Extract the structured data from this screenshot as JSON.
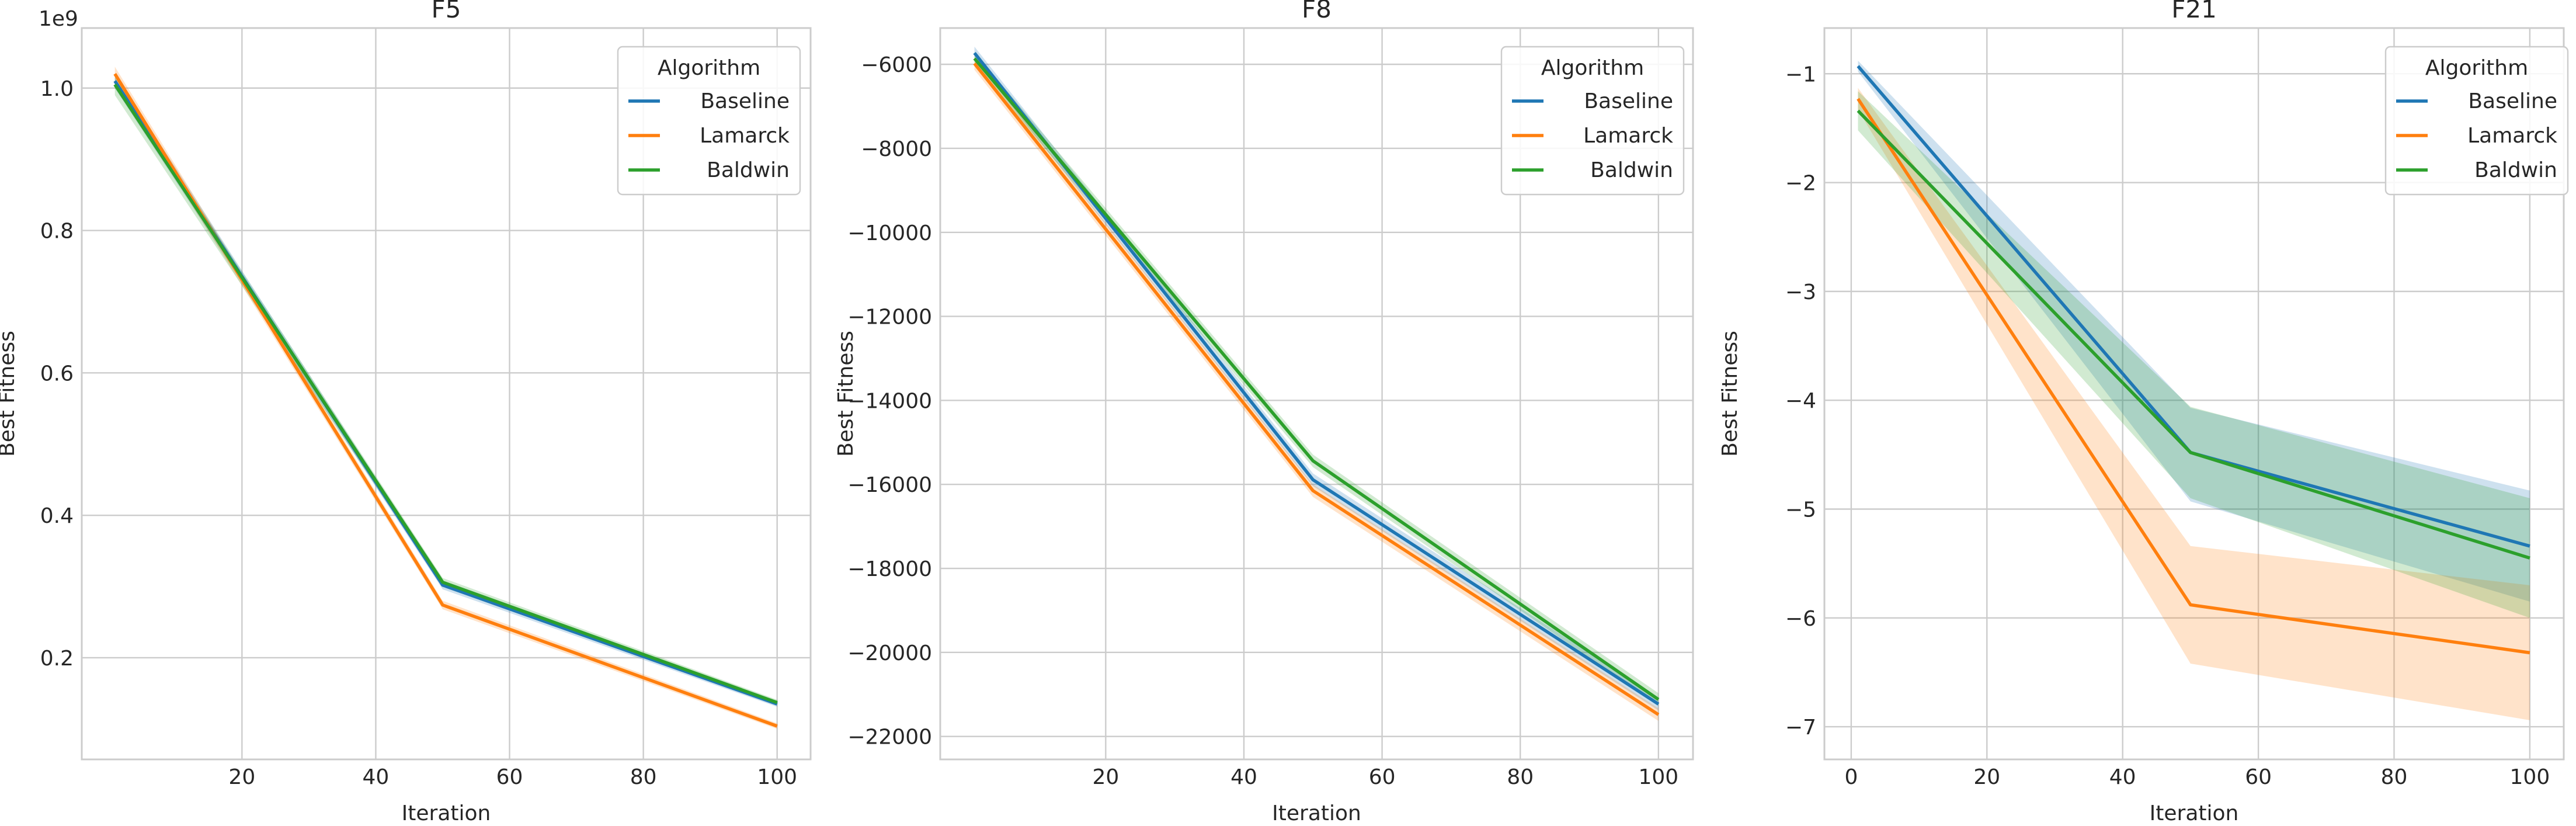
{
  "chart_data": [
    {
      "type": "line",
      "title": "F5",
      "xlabel": "Iteration",
      "ylabel": "Best Fitness",
      "y_offset_label": "1e9",
      "xlim": [
        -3.95,
        105
      ],
      "ylim": [
        0.0572,
        1.0843
      ],
      "x_ticks": [
        20,
        40,
        60,
        80,
        100
      ],
      "y_ticks": [
        0.2,
        0.4,
        0.6,
        0.8,
        1.0
      ],
      "y_tick_labels": [
        "0.2",
        "0.4",
        "0.6",
        "0.8",
        "1.0"
      ],
      "grid": true,
      "legend": {
        "title": "Algorithm",
        "placement": "top-right",
        "labels": [
          "Baseline",
          "Lamarck",
          "Baldwin"
        ]
      },
      "series": [
        {
          "name": "Baseline",
          "color": "#1f77b4",
          "x": [
            1,
            50,
            100
          ],
          "y": [
            1.01,
            0.302,
            0.135
          ],
          "lower": [
            1.0,
            0.296,
            0.131
          ],
          "upper": [
            1.02,
            0.308,
            0.139
          ]
        },
        {
          "name": "Lamarck",
          "color": "#ff7f0e",
          "x": [
            1,
            50,
            100
          ],
          "y": [
            1.02,
            0.274,
            0.104
          ],
          "lower": [
            1.01,
            0.268,
            0.1
          ],
          "upper": [
            1.03,
            0.28,
            0.108
          ]
        },
        {
          "name": "Baldwin",
          "color": "#2ca02c",
          "x": [
            1,
            50,
            100
          ],
          "y": [
            1.005,
            0.306,
            0.137
          ],
          "lower": [
            0.99,
            0.3,
            0.133
          ],
          "upper": [
            1.015,
            0.312,
            0.141
          ]
        }
      ]
    },
    {
      "type": "line",
      "title": "F8",
      "xlabel": "Iteration",
      "ylabel": "Best Fitness",
      "xlim": [
        -3.95,
        105
      ],
      "ylim": [
        -22547,
        -5136
      ],
      "x_ticks": [
        20,
        40,
        60,
        80,
        100
      ],
      "y_ticks": [
        -22000,
        -20000,
        -18000,
        -16000,
        -14000,
        -12000,
        -10000,
        -8000,
        -6000
      ],
      "y_tick_labels": [
        "−22000",
        "−20000",
        "−18000",
        "−16000",
        "−14000",
        "−12000",
        "−10000",
        "−8000",
        "−6000"
      ],
      "grid": true,
      "legend": {
        "title": "Algorithm",
        "placement": "top-right",
        "labels": [
          "Baseline",
          "Lamarck",
          "Baldwin"
        ]
      },
      "series": [
        {
          "name": "Baseline",
          "color": "#1f77b4",
          "x": [
            1,
            50,
            100
          ],
          "y": [
            -5730,
            -15890,
            -21230
          ],
          "lower": [
            -5880,
            -16040,
            -21380
          ],
          "upper": [
            -5580,
            -15740,
            -21080
          ]
        },
        {
          "name": "Lamarck",
          "color": "#ff7f0e",
          "x": [
            1,
            50,
            100
          ],
          "y": [
            -5980,
            -16150,
            -21480
          ],
          "lower": [
            -6130,
            -16300,
            -21630
          ],
          "upper": [
            -5830,
            -16000,
            -21330
          ]
        },
        {
          "name": "Baldwin",
          "color": "#2ca02c",
          "x": [
            1,
            50,
            100
          ],
          "y": [
            -5860,
            -15440,
            -21120
          ],
          "lower": [
            -6010,
            -15590,
            -21270
          ],
          "upper": [
            -5710,
            -15290,
            -20970
          ]
        }
      ]
    },
    {
      "type": "line",
      "title": "F21",
      "xlabel": "Iteration",
      "ylabel": "Best Fitness",
      "xlim": [
        -3.95,
        105
      ],
      "ylim": [
        -7.3,
        -0.58
      ],
      "x_ticks": [
        0,
        20,
        40,
        60,
        80,
        100
      ],
      "y_ticks": [
        -7,
        -6,
        -5,
        -4,
        -3,
        -2,
        -1
      ],
      "y_tick_labels": [
        "−7",
        "−6",
        "−5",
        "−4",
        "−3",
        "−2",
        "−1"
      ],
      "grid": true,
      "legend": {
        "title": "Algorithm",
        "placement": "top-right",
        "labels": [
          "Baseline",
          "Lamarck",
          "Baldwin"
        ]
      },
      "series": [
        {
          "name": "Baseline",
          "color": "#1f77b4",
          "x": [
            1,
            50,
            100
          ],
          "y": [
            -0.93,
            -4.48,
            -5.34
          ],
          "lower": [
            -0.98,
            -4.93,
            -5.85
          ],
          "upper": [
            -0.88,
            -4.07,
            -4.83
          ]
        },
        {
          "name": "Lamarck",
          "color": "#ff7f0e",
          "x": [
            1,
            50,
            100
          ],
          "y": [
            -1.23,
            -5.88,
            -6.32
          ],
          "lower": [
            -1.33,
            -6.42,
            -6.94
          ],
          "upper": [
            -1.13,
            -5.34,
            -5.7
          ]
        },
        {
          "name": "Baldwin",
          "color": "#2ca02c",
          "x": [
            1,
            50,
            100
          ],
          "y": [
            -1.34,
            -4.48,
            -5.45
          ],
          "lower": [
            -1.52,
            -4.9,
            -6.0
          ],
          "upper": [
            -1.16,
            -4.06,
            -4.9
          ]
        }
      ]
    }
  ]
}
